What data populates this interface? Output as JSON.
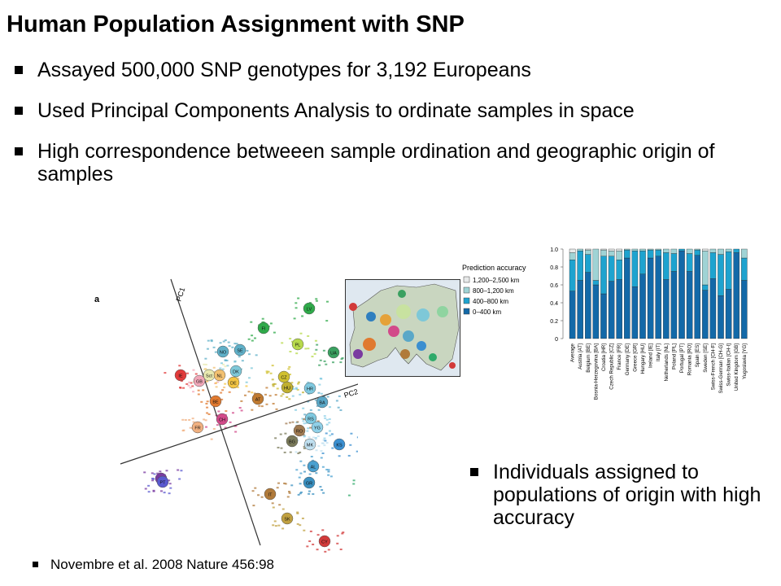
{
  "slide": {
    "title": "Human Population Assignment with SNP",
    "bullets": [
      "Assayed 500,000 SNP genotypes  for 3,192 Europeans",
      "Used Principal Components Analysis to ordinate samples in space",
      "High correspondence betweeen sample ordination and geographic origin of samples"
    ],
    "side_note": "Individuals assigned to populations of origin with high accuracy",
    "citation": "Novembre et al. 2008 Nature 456:98"
  },
  "pca_figure": {
    "panel_label": "a",
    "axis1_label": "PC1",
    "axis2_label": "PC2",
    "population_codes": [
      "LV",
      "FI",
      "PL",
      "UA",
      "NO",
      "SE",
      "IE",
      "GB",
      "Sct",
      "NL",
      "DK",
      "DE",
      "CZ",
      "HU",
      "HR",
      "BA",
      "BE",
      "AT",
      "CH",
      "FR",
      "RS",
      "YG",
      "RO",
      "BG",
      "MK",
      "KS",
      "ES",
      "PT",
      "AL",
      "GR",
      "IT",
      "SK",
      "CY",
      "TR"
    ]
  },
  "legend": {
    "title": "Prediction accuracy",
    "items": [
      "1,200–2,500 km",
      "800–1,200 km",
      "400–800 km",
      "0–400 km"
    ]
  },
  "colors": {
    "band_0_400": "#1369a8",
    "band_400_800": "#1ea3cf",
    "band_800_1200": "#9fd3d5",
    "band_1200_2500": "#e8eaea"
  },
  "chart_data": {
    "type": "bar",
    "stacked": true,
    "ylim": [
      0,
      1.0
    ],
    "yticks": [
      "0",
      "0.2",
      "0.4",
      "0.6",
      "0.8",
      "1.0"
    ],
    "categories": [
      "Average",
      "Austria [AT]",
      "Belgium [BE]",
      "Bosnia-Herzegovina [BA]",
      "Croatia [HR]",
      "Czech Republic [CZ]",
      "France [FR]",
      "Germany [DE]",
      "Greece [GR]",
      "Hungary [HU]",
      "Ireland [IE]",
      "Italy [IT]",
      "Netherlands [NL]",
      "Poland [PL]",
      "Portugal [PT]",
      "Romania [RO]",
      "Spain [ES]",
      "Sweden [SE]",
      "Swiss-French [CH-F]",
      "Swiss-German [CH-G]",
      "Swiss-Italian [CH-I]",
      "United Kingdom [GB]",
      "Yugoslavia [YG]"
    ],
    "series": [
      {
        "name": "0–400 km",
        "values": [
          0.53,
          0.65,
          0.74,
          0.6,
          0.5,
          0.64,
          0.66,
          0.9,
          0.58,
          0.72,
          0.9,
          0.92,
          0.66,
          0.75,
          0.98,
          0.75,
          0.93,
          0.54,
          0.67,
          0.48,
          0.55,
          0.96,
          0.65
        ]
      },
      {
        "name": "400–800 km",
        "values": [
          0.35,
          0.33,
          0.2,
          0.05,
          0.42,
          0.28,
          0.22,
          0.09,
          0.4,
          0.26,
          0.09,
          0.07,
          0.3,
          0.2,
          0.02,
          0.2,
          0.06,
          0.06,
          0.29,
          0.46,
          0.42,
          0.04,
          0.25
        ]
      },
      {
        "name": "800–1,200 km",
        "values": [
          0.08,
          0.02,
          0.05,
          0.35,
          0.07,
          0.06,
          0.1,
          0.01,
          0.02,
          0.02,
          0.01,
          0.01,
          0.04,
          0.05,
          0.0,
          0.05,
          0.01,
          0.38,
          0.04,
          0.06,
          0.03,
          0.0,
          0.1
        ]
      },
      {
        "name": "1,200–2,500 km",
        "values": [
          0.04,
          0.0,
          0.01,
          0.0,
          0.01,
          0.02,
          0.02,
          0.0,
          0.0,
          0.0,
          0.0,
          0.0,
          0.0,
          0.0,
          0.0,
          0.0,
          0.0,
          0.02,
          0.0,
          0.0,
          0.0,
          0.0,
          0.0
        ]
      }
    ]
  }
}
